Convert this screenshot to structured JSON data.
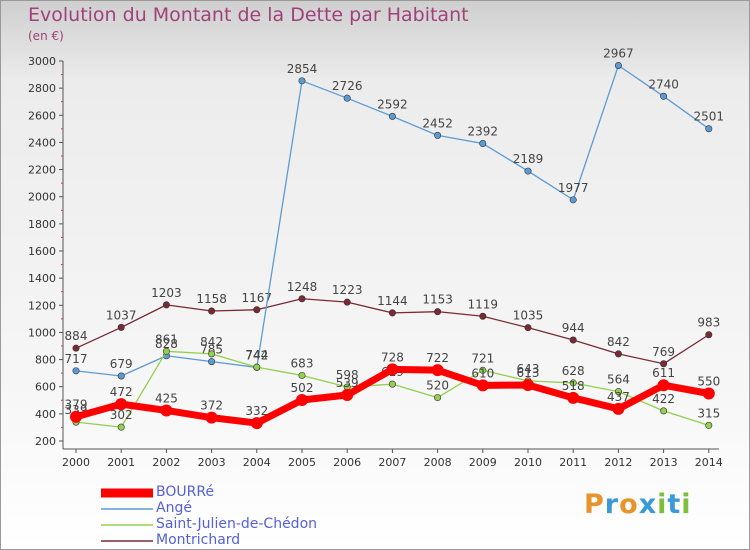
{
  "header": {
    "title": "Evolution du Montant de la Dette par Habitant",
    "unit": "(en €)"
  },
  "logo": {
    "text": "Proxiti",
    "letters": [
      {
        "ch": "P",
        "color": "#e8932b"
      },
      {
        "ch": "r",
        "color": "#3a9ad9"
      },
      {
        "ch": "o",
        "color": "#e8932b"
      },
      {
        "ch": "x",
        "color": "#3a9ad9"
      },
      {
        "ch": "i",
        "color": "#7cbf3c"
      },
      {
        "ch": "t",
        "color": "#3a9ad9"
      },
      {
        "ch": "i",
        "color": "#7cbf3c"
      }
    ]
  },
  "chart_data": {
    "type": "line",
    "title": "Evolution du Montant de la Dette par Habitant",
    "ylabel": "(en €)",
    "xlabel": "",
    "ylim": [
      200,
      3000
    ],
    "ytick_step": 200,
    "grid": false,
    "legend": "bottom-left",
    "categories": [
      "2000",
      "2001",
      "2002",
      "2003",
      "2004",
      "2005",
      "2006",
      "2007",
      "2008",
      "2009",
      "2010",
      "2011",
      "2012",
      "2013",
      "2014"
    ],
    "series": [
      {
        "name": "Montrichard",
        "color": "#7a2a32",
        "values": [
          884,
          1037,
          1203,
          1158,
          1167,
          1248,
          1223,
          1144,
          1153,
          1119,
          1035,
          944,
          842,
          769,
          983
        ]
      },
      {
        "name": "Angé",
        "color": "#5b9bd5",
        "values": [
          717,
          679,
          828,
          785,
          742,
          2854,
          2726,
          2592,
          2452,
          2392,
          2189,
          1977,
          2967,
          2740,
          2501
        ]
      },
      {
        "name": "Saint-Julien-de-Chédon",
        "color": "#92d050",
        "values": [
          339,
          302,
          861,
          842,
          744,
          683,
          598,
          619,
          520,
          721,
          643,
          628,
          564,
          422,
          315
        ]
      },
      {
        "name": "BOURRé",
        "color": "#ff0000",
        "values": [
          379,
          472,
          425,
          372,
          332,
          502,
          539,
          728,
          722,
          610,
          613,
          518,
          437,
          611,
          550
        ]
      }
    ]
  }
}
